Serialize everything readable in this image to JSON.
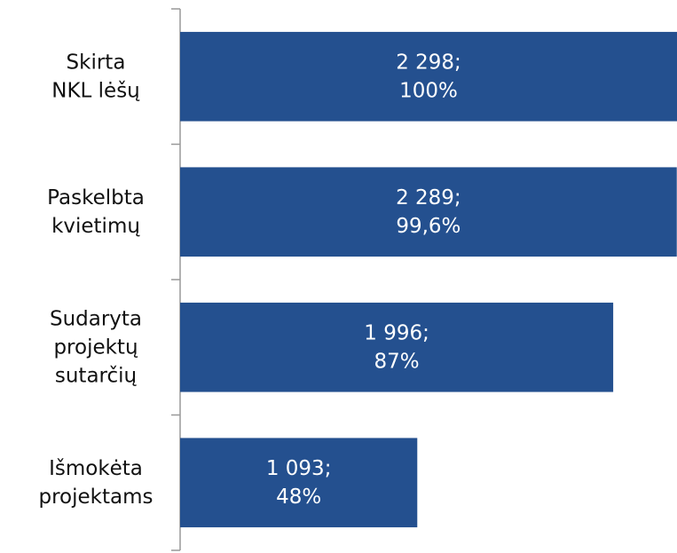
{
  "chart_data": {
    "type": "bar",
    "orientation": "horizontal",
    "categories": [
      "Skirta\nNKL lėšų",
      "Paskelbta\nkvietimų",
      "Sudaryta\nprojektų\nsutarčių",
      "Išmokėta\nprojektams"
    ],
    "values": [
      2298,
      2289,
      1996,
      1093
    ],
    "value_labels": [
      "2 298;\n100%",
      "2 289;\n99,6%",
      "1 996;\n87%",
      "1 093;\n48%"
    ],
    "color": "#24508f",
    "xlim": [
      0,
      2290
    ]
  }
}
